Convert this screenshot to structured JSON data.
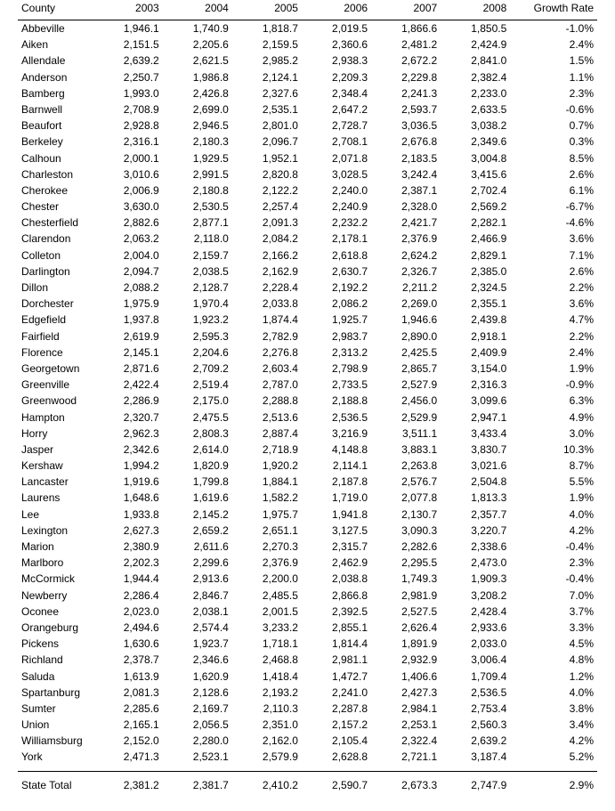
{
  "table": {
    "headers": {
      "county": "County",
      "y2003": "2003",
      "y2004": "2004",
      "y2005": "2005",
      "y2006": "2006",
      "y2007": "2007",
      "y2008": "2008",
      "growth_line2": "Growth Rate"
    },
    "rows": [
      {
        "county": "Abbeville",
        "y2003": "1,946.1",
        "y2004": "1,740.9",
        "y2005": "1,818.7",
        "y2006": "2,019.5",
        "y2007": "1,866.6",
        "y2008": "1,850.5",
        "growth": "-1.0%"
      },
      {
        "county": "Aiken",
        "y2003": "2,151.5",
        "y2004": "2,205.6",
        "y2005": "2,159.5",
        "y2006": "2,360.6",
        "y2007": "2,481.2",
        "y2008": "2,424.9",
        "growth": "2.4%"
      },
      {
        "county": "Allendale",
        "y2003": "2,639.2",
        "y2004": "2,621.5",
        "y2005": "2,985.2",
        "y2006": "2,938.3",
        "y2007": "2,672.2",
        "y2008": "2,841.0",
        "growth": "1.5%"
      },
      {
        "county": "Anderson",
        "y2003": "2,250.7",
        "y2004": "1,986.8",
        "y2005": "2,124.1",
        "y2006": "2,209.3",
        "y2007": "2,229.8",
        "y2008": "2,382.4",
        "growth": "1.1%"
      },
      {
        "county": "Bamberg",
        "y2003": "1,993.0",
        "y2004": "2,426.8",
        "y2005": "2,327.6",
        "y2006": "2,348.4",
        "y2007": "2,241.3",
        "y2008": "2,233.0",
        "growth": "2.3%"
      },
      {
        "county": "Barnwell",
        "y2003": "2,708.9",
        "y2004": "2,699.0",
        "y2005": "2,535.1",
        "y2006": "2,647.2",
        "y2007": "2,593.7",
        "y2008": "2,633.5",
        "growth": "-0.6%"
      },
      {
        "county": "Beaufort",
        "y2003": "2,928.8",
        "y2004": "2,946.5",
        "y2005": "2,801.0",
        "y2006": "2,728.7",
        "y2007": "3,036.5",
        "y2008": "3,038.2",
        "growth": "0.7%"
      },
      {
        "county": "Berkeley",
        "y2003": "2,316.1",
        "y2004": "2,180.3",
        "y2005": "2,096.7",
        "y2006": "2,708.1",
        "y2007": "2,676.8",
        "y2008": "2,349.6",
        "growth": "0.3%"
      },
      {
        "county": "Calhoun",
        "y2003": "2,000.1",
        "y2004": "1,929.5",
        "y2005": "1,952.1",
        "y2006": "2,071.8",
        "y2007": "2,183.5",
        "y2008": "3,004.8",
        "growth": "8.5%"
      },
      {
        "county": "Charleston",
        "y2003": "3,010.6",
        "y2004": "2,991.5",
        "y2005": "2,820.8",
        "y2006": "3,028.5",
        "y2007": "3,242.4",
        "y2008": "3,415.6",
        "growth": "2.6%"
      },
      {
        "county": "Cherokee",
        "y2003": "2,006.9",
        "y2004": "2,180.8",
        "y2005": "2,122.2",
        "y2006": "2,240.0",
        "y2007": "2,387.1",
        "y2008": "2,702.4",
        "growth": "6.1%"
      },
      {
        "county": "Chester",
        "y2003": "3,630.0",
        "y2004": "2,530.5",
        "y2005": "2,257.4",
        "y2006": "2,240.9",
        "y2007": "2,328.0",
        "y2008": "2,569.2",
        "growth": "-6.7%"
      },
      {
        "county": "Chesterfield",
        "y2003": "2,882.6",
        "y2004": "2,877.1",
        "y2005": "2,091.3",
        "y2006": "2,232.2",
        "y2007": "2,421.7",
        "y2008": "2,282.1",
        "growth": "-4.6%"
      },
      {
        "county": "Clarendon",
        "y2003": "2,063.2",
        "y2004": "2,118.0",
        "y2005": "2,084.2",
        "y2006": "2,178.1",
        "y2007": "2,376.9",
        "y2008": "2,466.9",
        "growth": "3.6%"
      },
      {
        "county": "Colleton",
        "y2003": "2,004.0",
        "y2004": "2,159.7",
        "y2005": "2,166.2",
        "y2006": "2,618.8",
        "y2007": "2,624.2",
        "y2008": "2,829.1",
        "growth": "7.1%"
      },
      {
        "county": "Darlington",
        "y2003": "2,094.7",
        "y2004": "2,038.5",
        "y2005": "2,162.9",
        "y2006": "2,630.7",
        "y2007": "2,326.7",
        "y2008": "2,385.0",
        "growth": "2.6%"
      },
      {
        "county": "Dillon",
        "y2003": "2,088.2",
        "y2004": "2,128.7",
        "y2005": "2,228.4",
        "y2006": "2,192.2",
        "y2007": "2,211.2",
        "y2008": "2,324.5",
        "growth": "2.2%"
      },
      {
        "county": "Dorchester",
        "y2003": "1,975.9",
        "y2004": "1,970.4",
        "y2005": "2,033.8",
        "y2006": "2,086.2",
        "y2007": "2,269.0",
        "y2008": "2,355.1",
        "growth": "3.6%"
      },
      {
        "county": "Edgefield",
        "y2003": "1,937.8",
        "y2004": "1,923.2",
        "y2005": "1,874.4",
        "y2006": "1,925.7",
        "y2007": "1,946.6",
        "y2008": "2,439.8",
        "growth": "4.7%"
      },
      {
        "county": "Fairfield",
        "y2003": "2,619.9",
        "y2004": "2,595.3",
        "y2005": "2,782.9",
        "y2006": "2,983.7",
        "y2007": "2,890.0",
        "y2008": "2,918.1",
        "growth": "2.2%"
      },
      {
        "county": "Florence",
        "y2003": "2,145.1",
        "y2004": "2,204.6",
        "y2005": "2,276.8",
        "y2006": "2,313.2",
        "y2007": "2,425.5",
        "y2008": "2,409.9",
        "growth": "2.4%"
      },
      {
        "county": "Georgetown",
        "y2003": "2,871.6",
        "y2004": "2,709.2",
        "y2005": "2,603.4",
        "y2006": "2,798.9",
        "y2007": "2,865.7",
        "y2008": "3,154.0",
        "growth": "1.9%"
      },
      {
        "county": "Greenville",
        "y2003": "2,422.4",
        "y2004": "2,519.4",
        "y2005": "2,787.0",
        "y2006": "2,733.5",
        "y2007": "2,527.9",
        "y2008": "2,316.3",
        "growth": "-0.9%"
      },
      {
        "county": "Greenwood",
        "y2003": "2,286.9",
        "y2004": "2,175.0",
        "y2005": "2,288.8",
        "y2006": "2,188.8",
        "y2007": "2,456.0",
        "y2008": "3,099.6",
        "growth": "6.3%"
      },
      {
        "county": "Hampton",
        "y2003": "2,320.7",
        "y2004": "2,475.5",
        "y2005": "2,513.6",
        "y2006": "2,536.5",
        "y2007": "2,529.9",
        "y2008": "2,947.1",
        "growth": "4.9%"
      },
      {
        "county": "Horry",
        "y2003": "2,962.3",
        "y2004": "2,808.3",
        "y2005": "2,887.4",
        "y2006": "3,216.9",
        "y2007": "3,511.1",
        "y2008": "3,433.4",
        "growth": "3.0%"
      },
      {
        "county": "Jasper",
        "y2003": "2,342.6",
        "y2004": "2,614.0",
        "y2005": "2,718.9",
        "y2006": "4,148.8",
        "y2007": "3,883.1",
        "y2008": "3,830.7",
        "growth": "10.3%"
      },
      {
        "county": "Kershaw",
        "y2003": "1,994.2",
        "y2004": "1,820.9",
        "y2005": "1,920.2",
        "y2006": "2,114.1",
        "y2007": "2,263.8",
        "y2008": "3,021.6",
        "growth": "8.7%"
      },
      {
        "county": "Lancaster",
        "y2003": "1,919.6",
        "y2004": "1,799.8",
        "y2005": "1,884.1",
        "y2006": "2,187.8",
        "y2007": "2,576.7",
        "y2008": "2,504.8",
        "growth": "5.5%"
      },
      {
        "county": "Laurens",
        "y2003": "1,648.6",
        "y2004": "1,619.6",
        "y2005": "1,582.2",
        "y2006": "1,719.0",
        "y2007": "2,077.8",
        "y2008": "1,813.3",
        "growth": "1.9%"
      },
      {
        "county": "Lee",
        "y2003": "1,933.8",
        "y2004": "2,145.2",
        "y2005": "1,975.7",
        "y2006": "1,941.8",
        "y2007": "2,130.7",
        "y2008": "2,357.7",
        "growth": "4.0%"
      },
      {
        "county": "Lexington",
        "y2003": "2,627.3",
        "y2004": "2,659.2",
        "y2005": "2,651.1",
        "y2006": "3,127.5",
        "y2007": "3,090.3",
        "y2008": "3,220.7",
        "growth": "4.2%"
      },
      {
        "county": "Marion",
        "y2003": "2,380.9",
        "y2004": "2,611.6",
        "y2005": "2,270.3",
        "y2006": "2,315.7",
        "y2007": "2,282.6",
        "y2008": "2,338.6",
        "growth": "-0.4%"
      },
      {
        "county": "Marlboro",
        "y2003": "2,202.3",
        "y2004": "2,299.6",
        "y2005": "2,376.9",
        "y2006": "2,462.9",
        "y2007": "2,295.5",
        "y2008": "2,473.0",
        "growth": "2.3%"
      },
      {
        "county": "McCormick",
        "y2003": "1,944.4",
        "y2004": "2,913.6",
        "y2005": "2,200.0",
        "y2006": "2,038.8",
        "y2007": "1,749.3",
        "y2008": "1,909.3",
        "growth": "-0.4%"
      },
      {
        "county": "Newberry",
        "y2003": "2,286.4",
        "y2004": "2,846.7",
        "y2005": "2,485.5",
        "y2006": "2,866.8",
        "y2007": "2,981.9",
        "y2008": "3,208.2",
        "growth": "7.0%"
      },
      {
        "county": "Oconee",
        "y2003": "2,023.0",
        "y2004": "2,038.1",
        "y2005": "2,001.5",
        "y2006": "2,392.5",
        "y2007": "2,527.5",
        "y2008": "2,428.4",
        "growth": "3.7%"
      },
      {
        "county": "Orangeburg",
        "y2003": "2,494.6",
        "y2004": "2,574.4",
        "y2005": "3,233.2",
        "y2006": "2,855.1",
        "y2007": "2,626.4",
        "y2008": "2,933.6",
        "growth": "3.3%"
      },
      {
        "county": "Pickens",
        "y2003": "1,630.6",
        "y2004": "1,923.7",
        "y2005": "1,718.1",
        "y2006": "1,814.4",
        "y2007": "1,891.9",
        "y2008": "2,033.0",
        "growth": "4.5%"
      },
      {
        "county": "Richland",
        "y2003": "2,378.7",
        "y2004": "2,346.6",
        "y2005": "2,468.8",
        "y2006": "2,981.1",
        "y2007": "2,932.9",
        "y2008": "3,006.4",
        "growth": "4.8%"
      },
      {
        "county": "Saluda",
        "y2003": "1,613.9",
        "y2004": "1,620.9",
        "y2005": "1,418.4",
        "y2006": "1,472.7",
        "y2007": "1,406.6",
        "y2008": "1,709.4",
        "growth": "1.2%"
      },
      {
        "county": "Spartanburg",
        "y2003": "2,081.3",
        "y2004": "2,128.6",
        "y2005": "2,193.2",
        "y2006": "2,241.0",
        "y2007": "2,427.3",
        "y2008": "2,536.5",
        "growth": "4.0%"
      },
      {
        "county": "Sumter",
        "y2003": "2,285.6",
        "y2004": "2,169.7",
        "y2005": "2,110.3",
        "y2006": "2,287.8",
        "y2007": "2,984.1",
        "y2008": "2,753.4",
        "growth": "3.8%"
      },
      {
        "county": "Union",
        "y2003": "2,165.1",
        "y2004": "2,056.5",
        "y2005": "2,351.0",
        "y2006": "2,157.2",
        "y2007": "2,253.1",
        "y2008": "2,560.3",
        "growth": "3.4%"
      },
      {
        "county": "Williamsburg",
        "y2003": "2,152.0",
        "y2004": "2,280.0",
        "y2005": "2,162.0",
        "y2006": "2,105.4",
        "y2007": "2,322.4",
        "y2008": "2,639.2",
        "growth": "4.2%"
      },
      {
        "county": "York",
        "y2003": "2,471.3",
        "y2004": "2,523.1",
        "y2005": "2,579.9",
        "y2006": "2,628.8",
        "y2007": "2,721.1",
        "y2008": "3,187.4",
        "growth": "5.2%"
      }
    ],
    "total": {
      "label": "State Total",
      "y2003": "2,381.2",
      "y2004": "2,381.7",
      "y2005": "2,410.2",
      "y2006": "2,590.7",
      "y2007": "2,673.3",
      "y2008": "2,747.9",
      "growth": "2.9%"
    }
  }
}
